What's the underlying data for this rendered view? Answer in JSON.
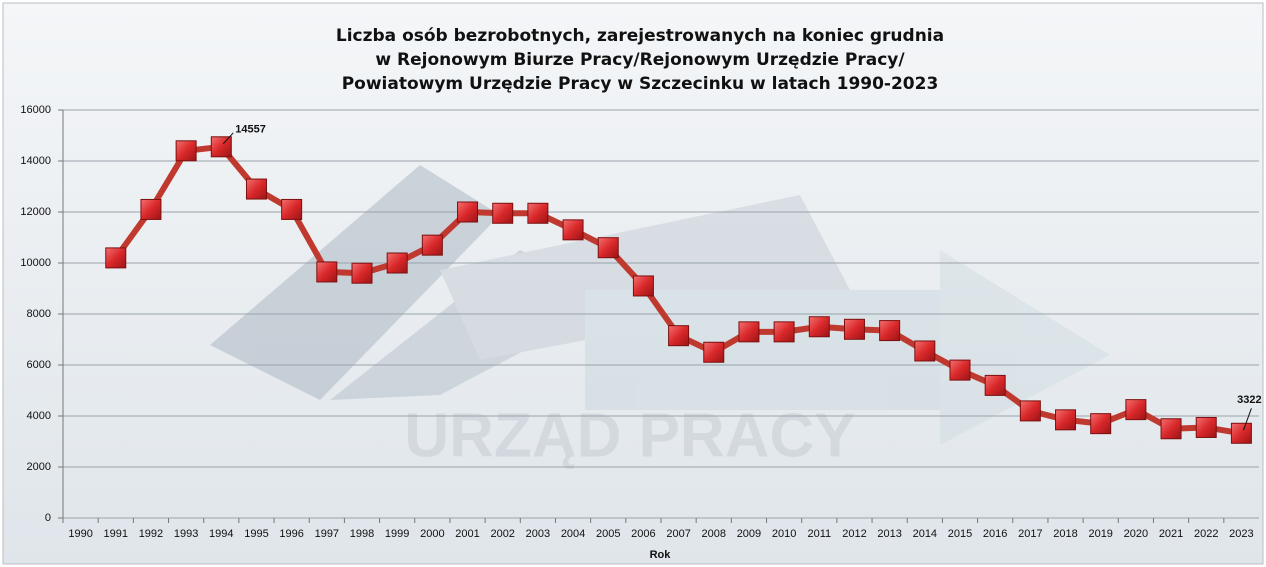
{
  "chart_data": {
    "type": "line",
    "title": [
      "Liczba osób bezrobotnych, zarejestrowanych na koniec grudnia",
      "w Rejonowym Biurze Pracy/Rejonowym Urzędzie Pracy/",
      "Powiatowym Urzędzie Pracy w Szczecinku w latach 1990-2023"
    ],
    "watermark": "URZĄD PRACY",
    "x_label": "Rok",
    "categories": [
      "1990",
      "1991",
      "1992",
      "1993",
      "1994",
      "1995",
      "1996",
      "1997",
      "1998",
      "1999",
      "2000",
      "2001",
      "2002",
      "2003",
      "2004",
      "2005",
      "2006",
      "2007",
      "2008",
      "2009",
      "2010",
      "2011",
      "2012",
      "2013",
      "2014",
      "2015",
      "2016",
      "2017",
      "2018",
      "2019",
      "2020",
      "2021",
      "2022",
      "2023"
    ],
    "values": [
      null,
      10200,
      12100,
      14400,
      14557,
      12900,
      12100,
      9650,
      9600,
      10000,
      10700,
      12000,
      11950,
      11950,
      11300,
      10600,
      9100,
      7150,
      6500,
      7300,
      7300,
      7500,
      7400,
      7350,
      6550,
      5800,
      5200,
      4200,
      3850,
      3700,
      4250,
      3500,
      3550,
      3322
    ],
    "value_labels": [
      null,
      null,
      null,
      null,
      "14557",
      null,
      null,
      null,
      null,
      null,
      null,
      null,
      null,
      null,
      null,
      null,
      null,
      null,
      null,
      null,
      null,
      null,
      null,
      null,
      null,
      null,
      null,
      null,
      null,
      null,
      null,
      null,
      null,
      "3322"
    ],
    "color": "#c0392f",
    "ylim": [
      0,
      16000
    ],
    "yticks": [
      0,
      2000,
      4000,
      6000,
      8000,
      10000,
      12000,
      14000,
      16000
    ],
    "grid": true
  }
}
